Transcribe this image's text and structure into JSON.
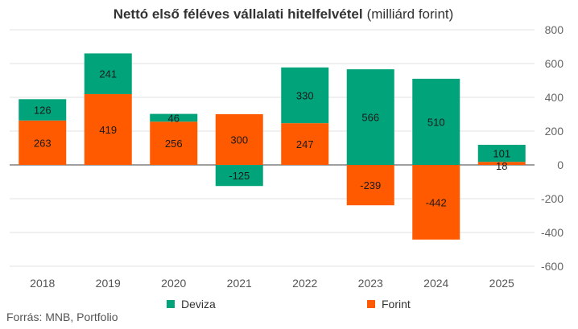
{
  "chart_data": {
    "type": "bar",
    "stacked": true,
    "title": "Nettó első féléves vállalati hitelfelvétel",
    "title_unit": "(milliárd forint)",
    "categories": [
      "2018",
      "2019",
      "2020",
      "2021",
      "2022",
      "2023",
      "2024",
      "2025"
    ],
    "series": [
      {
        "name": "Deviza",
        "color": "#00a37a",
        "values": [
          126,
          241,
          46,
          -125,
          330,
          566,
          510,
          101
        ]
      },
      {
        "name": "Forint",
        "color": "#ff5a00",
        "values": [
          263,
          419,
          256,
          300,
          247,
          -239,
          -442,
          18
        ]
      }
    ],
    "ylim": [
      -600,
      800
    ],
    "yticks": [
      -600,
      -400,
      -200,
      0,
      200,
      400,
      600,
      800
    ],
    "ytick_labels": [
      "-600",
      "-400",
      "-200",
      "0",
      "200",
      "400",
      "600",
      "800"
    ],
    "grid": true,
    "y_axis_side": "right",
    "legend_position": "bottom"
  },
  "source": "Forrás: MNB, Portfolio"
}
